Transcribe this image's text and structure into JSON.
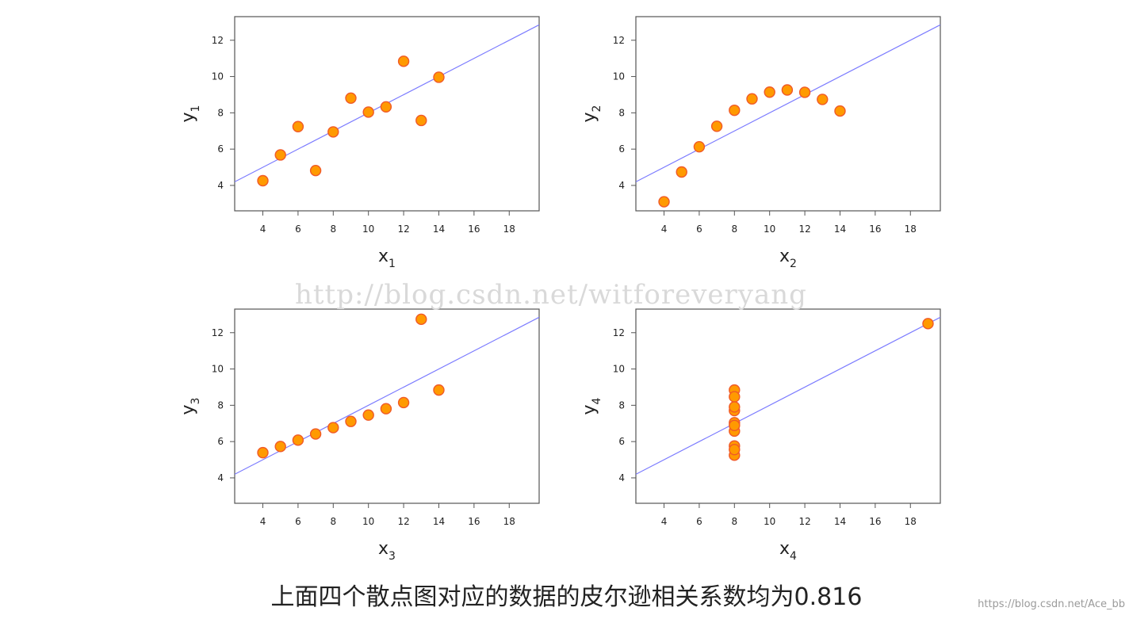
{
  "chart_data": [
    {
      "type": "scatter",
      "xlabel": "x",
      "xlabel_sub": "1",
      "ylabel": "y",
      "ylabel_sub": "1",
      "xlim": [
        2.4,
        19.7
      ],
      "ylim": [
        2.6,
        13.3
      ],
      "xticks": [
        4,
        6,
        8,
        10,
        12,
        14,
        16,
        18
      ],
      "yticks": [
        4,
        6,
        8,
        10,
        12
      ],
      "grid": false,
      "points": {
        "x": [
          10,
          8,
          13,
          9,
          11,
          14,
          6,
          4,
          12,
          7,
          5
        ],
        "y": [
          8.04,
          6.95,
          7.58,
          8.81,
          8.33,
          9.96,
          7.24,
          4.26,
          10.84,
          4.82,
          5.68
        ]
      },
      "fit_line": {
        "intercept": 3.0,
        "slope": 0.5
      }
    },
    {
      "type": "scatter",
      "xlabel": "x",
      "xlabel_sub": "2",
      "ylabel": "y",
      "ylabel_sub": "2",
      "xlim": [
        2.4,
        19.7
      ],
      "ylim": [
        2.6,
        13.3
      ],
      "xticks": [
        4,
        6,
        8,
        10,
        12,
        14,
        16,
        18
      ],
      "yticks": [
        4,
        6,
        8,
        10,
        12
      ],
      "grid": false,
      "points": {
        "x": [
          10,
          8,
          13,
          9,
          11,
          14,
          6,
          4,
          12,
          7,
          5
        ],
        "y": [
          9.14,
          8.14,
          8.74,
          8.77,
          9.26,
          8.1,
          6.13,
          3.1,
          9.13,
          7.26,
          4.74
        ]
      },
      "fit_line": {
        "intercept": 3.0,
        "slope": 0.5
      }
    },
    {
      "type": "scatter",
      "xlabel": "x",
      "xlabel_sub": "3",
      "ylabel": "y",
      "ylabel_sub": "3",
      "xlim": [
        2.4,
        19.7
      ],
      "ylim": [
        2.6,
        13.3
      ],
      "xticks": [
        4,
        6,
        8,
        10,
        12,
        14,
        16,
        18
      ],
      "yticks": [
        4,
        6,
        8,
        10,
        12
      ],
      "grid": false,
      "points": {
        "x": [
          10,
          8,
          13,
          9,
          11,
          14,
          6,
          4,
          12,
          7,
          5
        ],
        "y": [
          7.46,
          6.77,
          12.74,
          7.11,
          7.81,
          8.84,
          6.08,
          5.39,
          8.15,
          6.42,
          5.73
        ]
      },
      "fit_line": {
        "intercept": 3.0,
        "slope": 0.5
      }
    },
    {
      "type": "scatter",
      "xlabel": "x",
      "xlabel_sub": "4",
      "ylabel": "y",
      "ylabel_sub": "4",
      "xlim": [
        2.4,
        19.7
      ],
      "ylim": [
        2.6,
        13.3
      ],
      "xticks": [
        4,
        6,
        8,
        10,
        12,
        14,
        16,
        18
      ],
      "yticks": [
        4,
        6,
        8,
        10,
        12
      ],
      "grid": false,
      "points": {
        "x": [
          8,
          8,
          8,
          8,
          8,
          8,
          8,
          19,
          8,
          8,
          8
        ],
        "y": [
          6.58,
          5.76,
          7.71,
          8.84,
          8.47,
          7.04,
          5.25,
          12.5,
          5.56,
          7.91,
          6.89
        ]
      },
      "fit_line": {
        "intercept": 3.0,
        "slope": 0.5
      }
    }
  ],
  "style": {
    "point_fill": "#ff9a00",
    "point_stroke": "#f05a28",
    "line_color": "#7b7bff"
  },
  "watermark": "http://blog.csdn.net/witforeveryang",
  "caption": "上面四个散点图对应的数据的皮尔逊相关系数均为0.816",
  "source_credit": "https://blog.csdn.net/Ace_bb"
}
